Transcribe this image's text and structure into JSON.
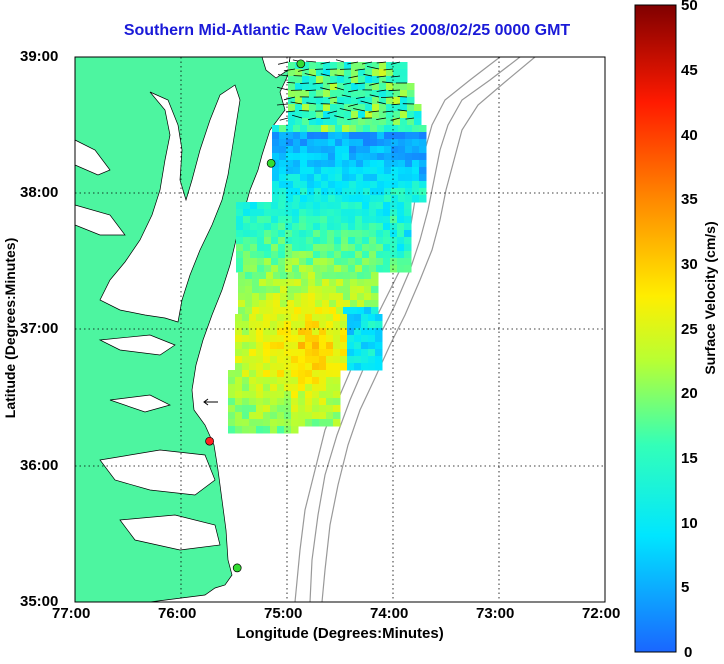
{
  "title": "Southern Mid-Atlantic Raw Velocities 2008/02/25 0000 GMT",
  "xlabel": "Longitude (Degrees:Minutes)",
  "ylabel": "Latitude (Degrees:Minutes)",
  "colorbar": {
    "label": "Surface Velocity (cm/s)",
    "ticks": [
      "50",
      "45",
      "40",
      "35",
      "30",
      "25",
      "20",
      "15",
      "10",
      "5",
      "0"
    ],
    "min": 0,
    "max": 50
  },
  "x_ticks": [
    "77:00",
    "76:00",
    "75:00",
    "74:00",
    "73:00",
    "72:00"
  ],
  "y_ticks": [
    "39:00",
    "38:00",
    "37:00",
    "36:00",
    "35:00"
  ],
  "colors": {
    "land": "#4df5a0",
    "title": "#1a1ad8",
    "contour": "#999999",
    "station": "#33dd33",
    "station_alert": "#ff2222"
  },
  "stations": [
    {
      "lon": -74.87,
      "lat": 38.95,
      "status": "active"
    },
    {
      "lon": -75.15,
      "lat": 38.22,
      "status": "active"
    },
    {
      "lon": -75.73,
      "lat": 36.18,
      "status": "alert"
    },
    {
      "lon": -75.47,
      "lat": 35.25,
      "status": "active"
    }
  ]
}
